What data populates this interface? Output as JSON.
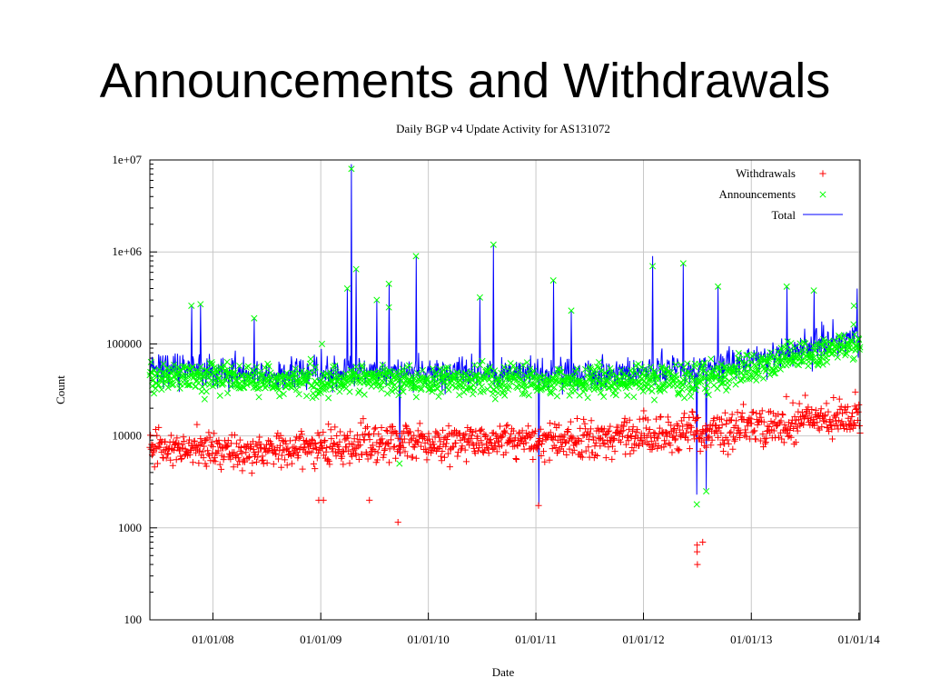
{
  "slide": {
    "title": "Announcements and Withdrawals"
  },
  "chart_data": {
    "type": "scatter",
    "title": "Daily BGP v4 Update Activity for AS131072",
    "xlabel": "Date",
    "ylabel": "Count",
    "y_scale": "log",
    "ylim": [
      100,
      10000000
    ],
    "xlim": [
      "2007-06-01",
      "2014-01-05"
    ],
    "y_ticks": [
      "100",
      "1000",
      "10000",
      "100000",
      "1e+06",
      "1e+07"
    ],
    "x_ticks": [
      "01/01/08",
      "01/01/09",
      "01/01/10",
      "01/01/11",
      "01/01/12",
      "01/01/13",
      "01/01/14"
    ],
    "grid": true,
    "legend_position": "top-right",
    "series": [
      {
        "name": "Withdrawals",
        "marker": "+",
        "color": "#ff0000",
        "baseline": [
          [
            "2007-06-01",
            7000
          ],
          [
            "2008-06-01",
            7000
          ],
          [
            "2009-06-01",
            8000
          ],
          [
            "2010-06-01",
            8500
          ],
          [
            "2011-06-01",
            9000
          ],
          [
            "2012-06-01",
            11000
          ],
          [
            "2013-06-01",
            14000
          ],
          [
            "2014-01-05",
            16000
          ]
        ],
        "outliers": [
          [
            "2008-12-25",
            2000
          ],
          [
            "2009-01-10",
            2000
          ],
          [
            "2009-06-15",
            2000
          ],
          [
            "2009-09-20",
            1150
          ],
          [
            "2011-01-10",
            1750
          ],
          [
            "2012-07-01",
            650
          ],
          [
            "2012-07-01",
            550
          ],
          [
            "2012-07-02",
            400
          ],
          [
            "2012-07-20",
            700
          ],
          [
            "2013-12-20",
            30000
          ]
        ]
      },
      {
        "name": "Announcements",
        "marker": "x",
        "color": "#00ff00",
        "baseline": [
          [
            "2007-06-01",
            45000
          ],
          [
            "2008-06-01",
            40000
          ],
          [
            "2009-06-01",
            42000
          ],
          [
            "2010-06-01",
            40000
          ],
          [
            "2011-06-01",
            40000
          ],
          [
            "2012-06-01",
            40000
          ],
          [
            "2013-01-01",
            55000
          ],
          [
            "2013-06-01",
            75000
          ],
          [
            "2014-01-05",
            100000
          ]
        ],
        "spikes": [
          [
            "2007-10-20",
            260000
          ],
          [
            "2007-11-20",
            270000
          ],
          [
            "2008-05-20",
            190000
          ],
          [
            "2009-01-05",
            100000
          ],
          [
            "2009-04-01",
            400000
          ],
          [
            "2009-04-15",
            8000000
          ],
          [
            "2009-05-01",
            650000
          ],
          [
            "2009-07-10",
            300000
          ],
          [
            "2009-08-20",
            450000
          ],
          [
            "2009-08-20",
            250000
          ],
          [
            "2009-09-25",
            5000
          ],
          [
            "2009-11-20",
            900000
          ],
          [
            "2010-06-25",
            320000
          ],
          [
            "2010-08-10",
            1200000
          ],
          [
            "2011-03-01",
            490000
          ],
          [
            "2011-05-01",
            230000
          ],
          [
            "2012-02-01",
            700000
          ],
          [
            "2012-05-15",
            750000
          ],
          [
            "2012-06-30",
            1800
          ],
          [
            "2012-08-01",
            2500
          ],
          [
            "2012-09-10",
            420000
          ],
          [
            "2013-05-01",
            420000
          ],
          [
            "2013-08-01",
            380000
          ],
          [
            "2013-12-15",
            260000
          ]
        ]
      },
      {
        "name": "Total",
        "line": true,
        "color": "#0000ff",
        "baseline": [
          [
            "2007-06-01",
            55000
          ],
          [
            "2008-06-01",
            48000
          ],
          [
            "2009-06-01",
            50000
          ],
          [
            "2010-06-01",
            48000
          ],
          [
            "2011-06-01",
            48000
          ],
          [
            "2012-06-01",
            52000
          ],
          [
            "2013-01-01",
            65000
          ],
          [
            "2013-06-01",
            85000
          ],
          [
            "2014-01-05",
            120000
          ]
        ],
        "spikes": [
          [
            "2007-10-20",
            260000
          ],
          [
            "2007-11-20",
            270000
          ],
          [
            "2008-05-20",
            190000
          ],
          [
            "2009-04-01",
            400000
          ],
          [
            "2009-04-15",
            9000000
          ],
          [
            "2009-05-01",
            650000
          ],
          [
            "2009-07-10",
            300000
          ],
          [
            "2009-08-20",
            450000
          ],
          [
            "2009-09-25",
            6000
          ],
          [
            "2009-11-20",
            900000
          ],
          [
            "2010-06-25",
            320000
          ],
          [
            "2010-08-10",
            1200000
          ],
          [
            "2011-01-10",
            1800
          ],
          [
            "2011-03-01",
            490000
          ],
          [
            "2011-05-01",
            230000
          ],
          [
            "2012-02-01",
            900000
          ],
          [
            "2012-05-15",
            750000
          ],
          [
            "2012-06-30",
            2300
          ],
          [
            "2012-08-01",
            2600
          ],
          [
            "2012-09-10",
            420000
          ],
          [
            "2013-05-01",
            420000
          ],
          [
            "2013-08-01",
            380000
          ],
          [
            "2013-12-25",
            400000
          ]
        ]
      }
    ]
  }
}
